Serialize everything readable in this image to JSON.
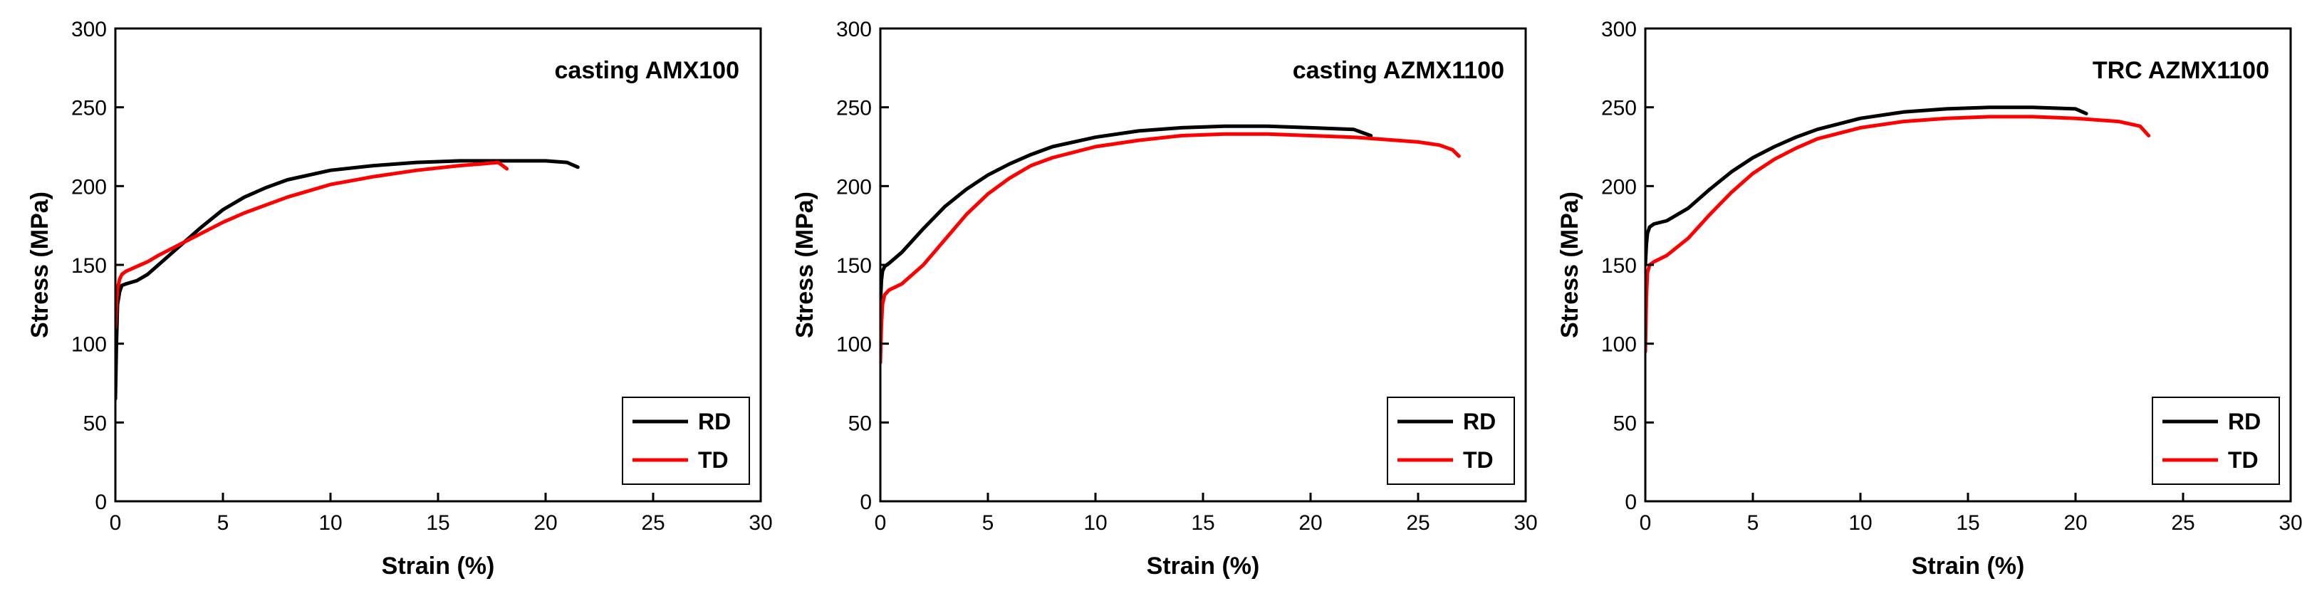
{
  "chart_data": [
    {
      "type": "line",
      "title": "casting AMX100",
      "xlabel": "Strain (%)",
      "ylabel": "Stress (MPa)",
      "xlim": [
        0,
        30
      ],
      "ylim": [
        0,
        300
      ],
      "xticks": [
        0,
        5,
        10,
        15,
        20,
        25,
        30
      ],
      "yticks": [
        0,
        50,
        100,
        150,
        200,
        250,
        300
      ],
      "legend_position": "bottom-right",
      "series": [
        {
          "name": "RD",
          "color": "#000000",
          "x": [
            0,
            0.05,
            0.1,
            0.2,
            0.3,
            0.5,
            1,
            1.5,
            2,
            3,
            4,
            5,
            6,
            7,
            8,
            10,
            12,
            14,
            16,
            18,
            20,
            21,
            21.5
          ],
          "y": [
            65,
            100,
            125,
            133,
            137,
            138,
            140,
            144,
            150,
            162,
            174,
            185,
            193,
            199,
            204,
            210,
            213,
            215,
            216,
            216,
            216,
            215,
            212
          ]
        },
        {
          "name": "TD",
          "color": "#ff0000",
          "x": [
            0,
            0.05,
            0.1,
            0.2,
            0.3,
            0.5,
            1,
            1.5,
            2,
            3,
            4,
            5,
            6,
            8,
            10,
            12,
            14,
            16,
            17,
            17.8,
            18.2
          ],
          "y": [
            110,
            125,
            135,
            141,
            144,
            146,
            149,
            152,
            156,
            163,
            170,
            177,
            183,
            193,
            201,
            206,
            210,
            213,
            214,
            215,
            211
          ]
        }
      ]
    },
    {
      "type": "line",
      "title": "casting AZMX1100",
      "xlabel": "Strain (%)",
      "ylabel": "Stress (MPa)",
      "xlim": [
        0,
        30
      ],
      "ylim": [
        0,
        300
      ],
      "xticks": [
        0,
        5,
        10,
        15,
        20,
        25,
        30
      ],
      "yticks": [
        0,
        50,
        100,
        150,
        200,
        250,
        300
      ],
      "legend_position": "bottom-right",
      "series": [
        {
          "name": "RD",
          "color": "#000000",
          "x": [
            0,
            0.05,
            0.1,
            0.2,
            0.4,
            1,
            2,
            3,
            4,
            5,
            6,
            7,
            8,
            10,
            12,
            14,
            16,
            18,
            20,
            22,
            22.8
          ],
          "y": [
            125,
            140,
            146,
            149,
            151,
            158,
            173,
            187,
            198,
            207,
            214,
            220,
            225,
            231,
            235,
            237,
            238,
            238,
            237,
            236,
            232
          ]
        },
        {
          "name": "TD",
          "color": "#ff0000",
          "x": [
            0,
            0.05,
            0.1,
            0.2,
            0.4,
            1,
            2,
            3,
            4,
            5,
            6,
            7,
            8,
            10,
            12,
            14,
            16,
            18,
            20,
            22,
            24,
            25,
            26,
            26.6,
            26.9
          ],
          "y": [
            88,
            112,
            125,
            131,
            134,
            138,
            150,
            166,
            182,
            195,
            205,
            213,
            218,
            225,
            229,
            232,
            233,
            233,
            232,
            231,
            229,
            228,
            226,
            223,
            219
          ]
        }
      ]
    },
    {
      "type": "line",
      "title": "TRC AZMX1100",
      "xlabel": "Strain (%)",
      "ylabel": "Stress (MPa)",
      "xlim": [
        0,
        30
      ],
      "ylim": [
        0,
        300
      ],
      "xticks": [
        0,
        5,
        10,
        15,
        20,
        25,
        30
      ],
      "yticks": [
        0,
        50,
        100,
        150,
        200,
        250,
        300
      ],
      "legend_position": "bottom-right",
      "series": [
        {
          "name": "RD",
          "color": "#000000",
          "x": [
            0,
            0.05,
            0.1,
            0.2,
            0.4,
            1,
            2,
            3,
            4,
            5,
            6,
            7,
            8,
            10,
            12,
            14,
            16,
            18,
            20,
            20.5
          ],
          "y": [
            150,
            163,
            170,
            174,
            176,
            178,
            186,
            198,
            209,
            218,
            225,
            231,
            236,
            243,
            247,
            249,
            250,
            250,
            249,
            246
          ]
        },
        {
          "name": "TD",
          "color": "#ff0000",
          "x": [
            0,
            0.05,
            0.1,
            0.2,
            0.4,
            1,
            2,
            3,
            4,
            5,
            6,
            7,
            8,
            10,
            12,
            14,
            16,
            18,
            20,
            22,
            23,
            23.4
          ],
          "y": [
            95,
            130,
            145,
            150,
            152,
            156,
            167,
            182,
            196,
            208,
            217,
            224,
            230,
            237,
            241,
            243,
            244,
            244,
            243,
            241,
            238,
            232
          ]
        }
      ]
    }
  ]
}
